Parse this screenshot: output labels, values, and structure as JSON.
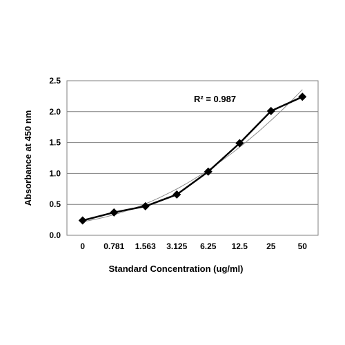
{
  "chart_data": {
    "type": "line",
    "title": "",
    "xlabel": "Standard Concentration (ug/ml)",
    "ylabel": "Absorbance at 450 nm",
    "categories": [
      "0",
      "0.781",
      "1.563",
      "3.125",
      "6.25",
      "12.5",
      "25",
      "50"
    ],
    "series": [
      {
        "values": [
          0.24,
          0.37,
          0.47,
          0.66,
          1.03,
          1.49,
          2.01,
          2.24
        ],
        "color": "#000000",
        "marker": "diamond"
      }
    ],
    "trendline": {
      "type": "polynomial",
      "color": "#888888"
    },
    "annotation": "R² = 0.987",
    "yticks": [
      "0.0",
      "0.5",
      "1.0",
      "1.5",
      "2.0",
      "2.5"
    ],
    "ylim": [
      0,
      2.5
    ],
    "grid": {
      "horizontal": true,
      "vertical": false
    },
    "legend": "none"
  }
}
